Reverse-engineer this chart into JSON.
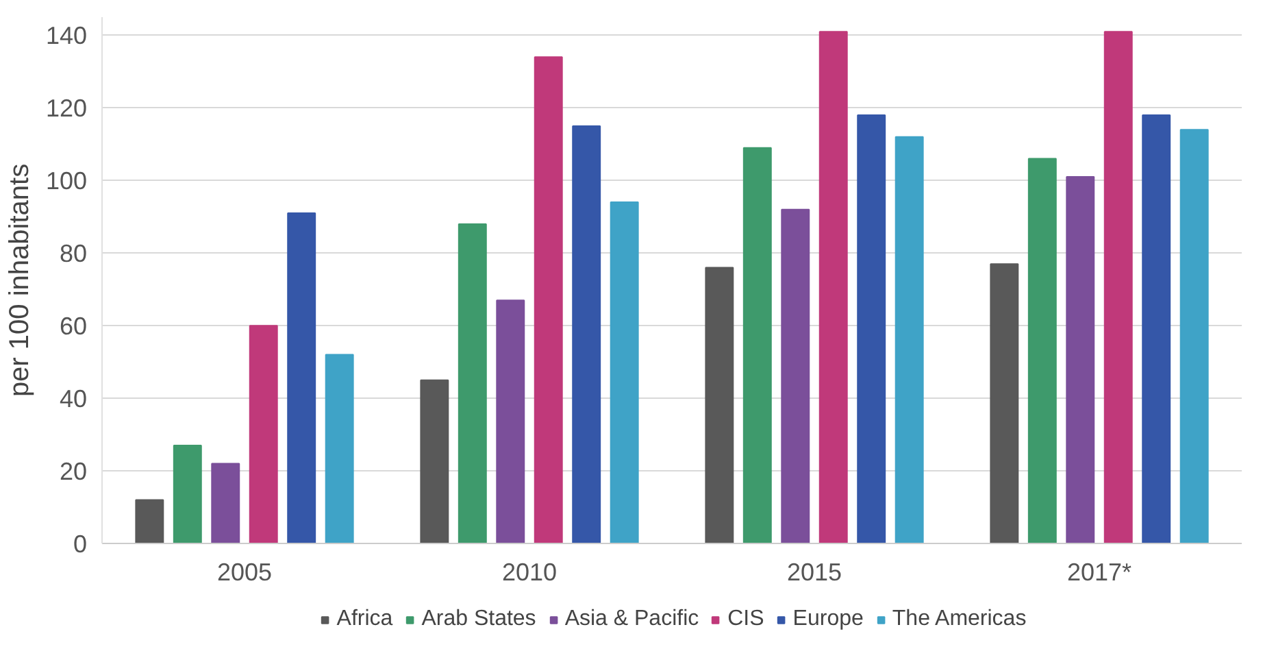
{
  "chart_data": {
    "type": "bar",
    "ylabel": "per 100 inhabitants",
    "categories": [
      "2005",
      "2010",
      "2015",
      "2017*"
    ],
    "series": [
      {
        "name": "Africa",
        "color": "#595959",
        "values": [
          12,
          45,
          76,
          77
        ]
      },
      {
        "name": "Arab States",
        "color": "#3e9a6c",
        "values": [
          27,
          88,
          109,
          106
        ]
      },
      {
        "name": "Asia & Pacific",
        "color": "#7b4f9a",
        "values": [
          22,
          67,
          92,
          101
        ]
      },
      {
        "name": "CIS",
        "color": "#c0397a",
        "values": [
          60,
          134,
          141,
          141
        ]
      },
      {
        "name": "Europe",
        "color": "#3557a8",
        "values": [
          91,
          115,
          118,
          118
        ]
      },
      {
        "name": "The Americas",
        "color": "#3fa3c7",
        "values": [
          52,
          94,
          112,
          114
        ]
      }
    ],
    "ylim": [
      0,
      145
    ],
    "yticks": [
      0,
      20,
      40,
      60,
      80,
      100,
      120,
      140
    ],
    "grid": "y",
    "legend": "bottom"
  }
}
